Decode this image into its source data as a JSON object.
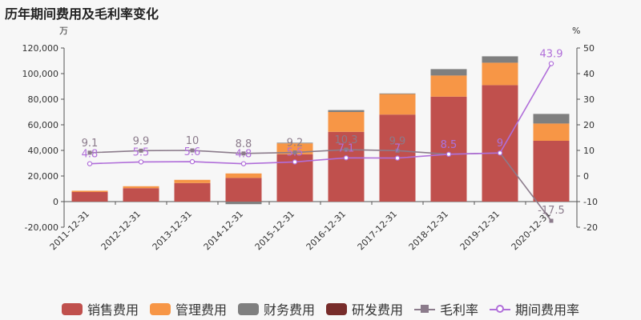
{
  "chart_data": {
    "type": "bar",
    "title": "历年期间费用及毛利率变化",
    "y_left_unit": "万",
    "y_right_unit": "%",
    "ylim_left": [
      -20000,
      120000
    ],
    "ylim_right": [
      -20,
      50
    ],
    "y_left_ticks": [
      "120,000",
      "100,000",
      "80,000",
      "60,000",
      "40,000",
      "20,000",
      "0",
      "-20,000"
    ],
    "y_right_ticks": [
      "50",
      "40",
      "30",
      "20",
      "10",
      "0",
      "-10",
      "-20"
    ],
    "categories": [
      "2011-12-31",
      "2012-12-31",
      "2013-12-31",
      "2014-12-31",
      "2015-12-31",
      "2016-12-31",
      "2017-12-31",
      "2018-12-31",
      "2019-12-31",
      "2020-12-31"
    ],
    "bar_series": [
      {
        "name": "销售费用",
        "color": "#c0504d",
        "values": [
          7500,
          10500,
          14500,
          18500,
          37000,
          54500,
          68000,
          82000,
          91000,
          47500
        ]
      },
      {
        "name": "管理费用",
        "color": "#f79646",
        "values": [
          1000,
          1500,
          2500,
          3500,
          8500,
          15500,
          16000,
          16500,
          17500,
          13500
        ]
      },
      {
        "name": "财务费用",
        "color": "#7f7f7f",
        "values": [
          0,
          0,
          0,
          -2000,
          500,
          1500,
          500,
          5000,
          5000,
          7500
        ]
      },
      {
        "name": "研发费用",
        "color": "#772c2a",
        "values": [
          0,
          0,
          0,
          0,
          0,
          0,
          0,
          0,
          0,
          0
        ]
      }
    ],
    "line_series": [
      {
        "name": "毛利率",
        "color": "#8b7b8b",
        "marker": "square",
        "values": [
          9.1,
          9.9,
          10,
          8.8,
          9.2,
          10.3,
          9.9,
          8.5,
          9,
          -17.5
        ],
        "labels": [
          "9.1",
          "9.9",
          "10",
          "8.8",
          "9.2",
          "10.3",
          "9.9",
          "8.5",
          "9",
          "-17.5"
        ]
      },
      {
        "name": "期间费用率",
        "color": "#b06ed9",
        "marker": "circle",
        "values": [
          4.8,
          5.5,
          5.6,
          4.8,
          5.5,
          7.1,
          7,
          8.5,
          9,
          43.9
        ],
        "labels": [
          "4.8",
          "5.5",
          "5.6",
          "4.8",
          "5.5",
          "7.1",
          "7",
          "8.5",
          "9",
          "43.9"
        ]
      }
    ]
  }
}
